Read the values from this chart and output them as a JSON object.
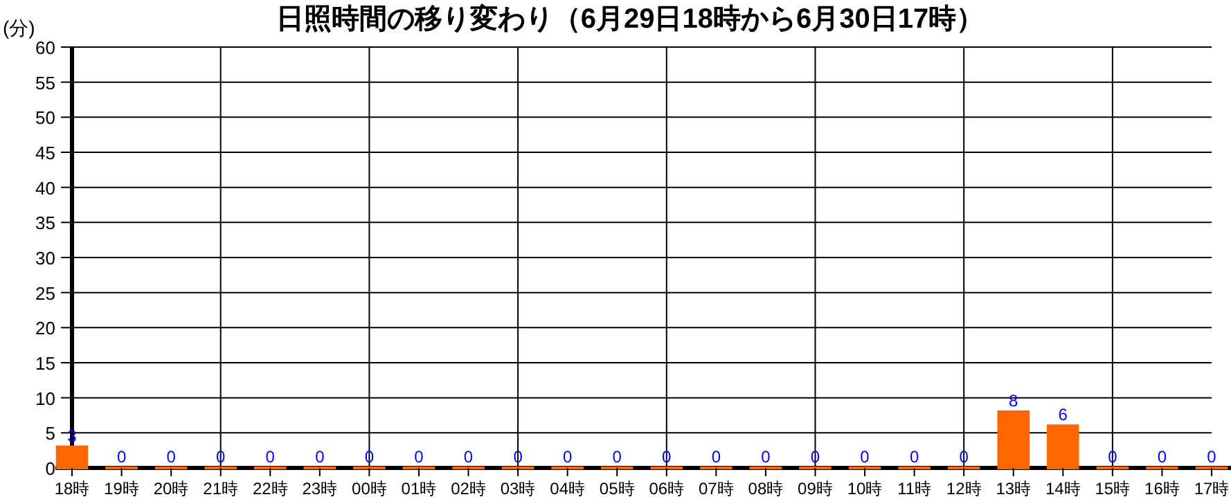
{
  "chart_data": {
    "type": "bar",
    "title": "日照時間の移り変わり（6月29日18時から6月30日17時）",
    "ylabel": "(分)",
    "categories": [
      "18時",
      "19時",
      "20時",
      "21時",
      "22時",
      "23時",
      "00時",
      "01時",
      "02時",
      "03時",
      "04時",
      "05時",
      "06時",
      "07時",
      "08時",
      "09時",
      "10時",
      "11時",
      "12時",
      "13時",
      "14時",
      "15時",
      "16時",
      "17時"
    ],
    "values": [
      3,
      0,
      0,
      0,
      0,
      0,
      0,
      0,
      0,
      0,
      0,
      0,
      0,
      0,
      0,
      0,
      0,
      0,
      0,
      8,
      6,
      0,
      0,
      0
    ],
    "color": "#ff6600",
    "data_labels": true,
    "grid": true,
    "ylim": [
      0,
      60
    ],
    "yticks": [
      0,
      5,
      10,
      15,
      20,
      25,
      30,
      35,
      40,
      45,
      50,
      55,
      60
    ]
  }
}
